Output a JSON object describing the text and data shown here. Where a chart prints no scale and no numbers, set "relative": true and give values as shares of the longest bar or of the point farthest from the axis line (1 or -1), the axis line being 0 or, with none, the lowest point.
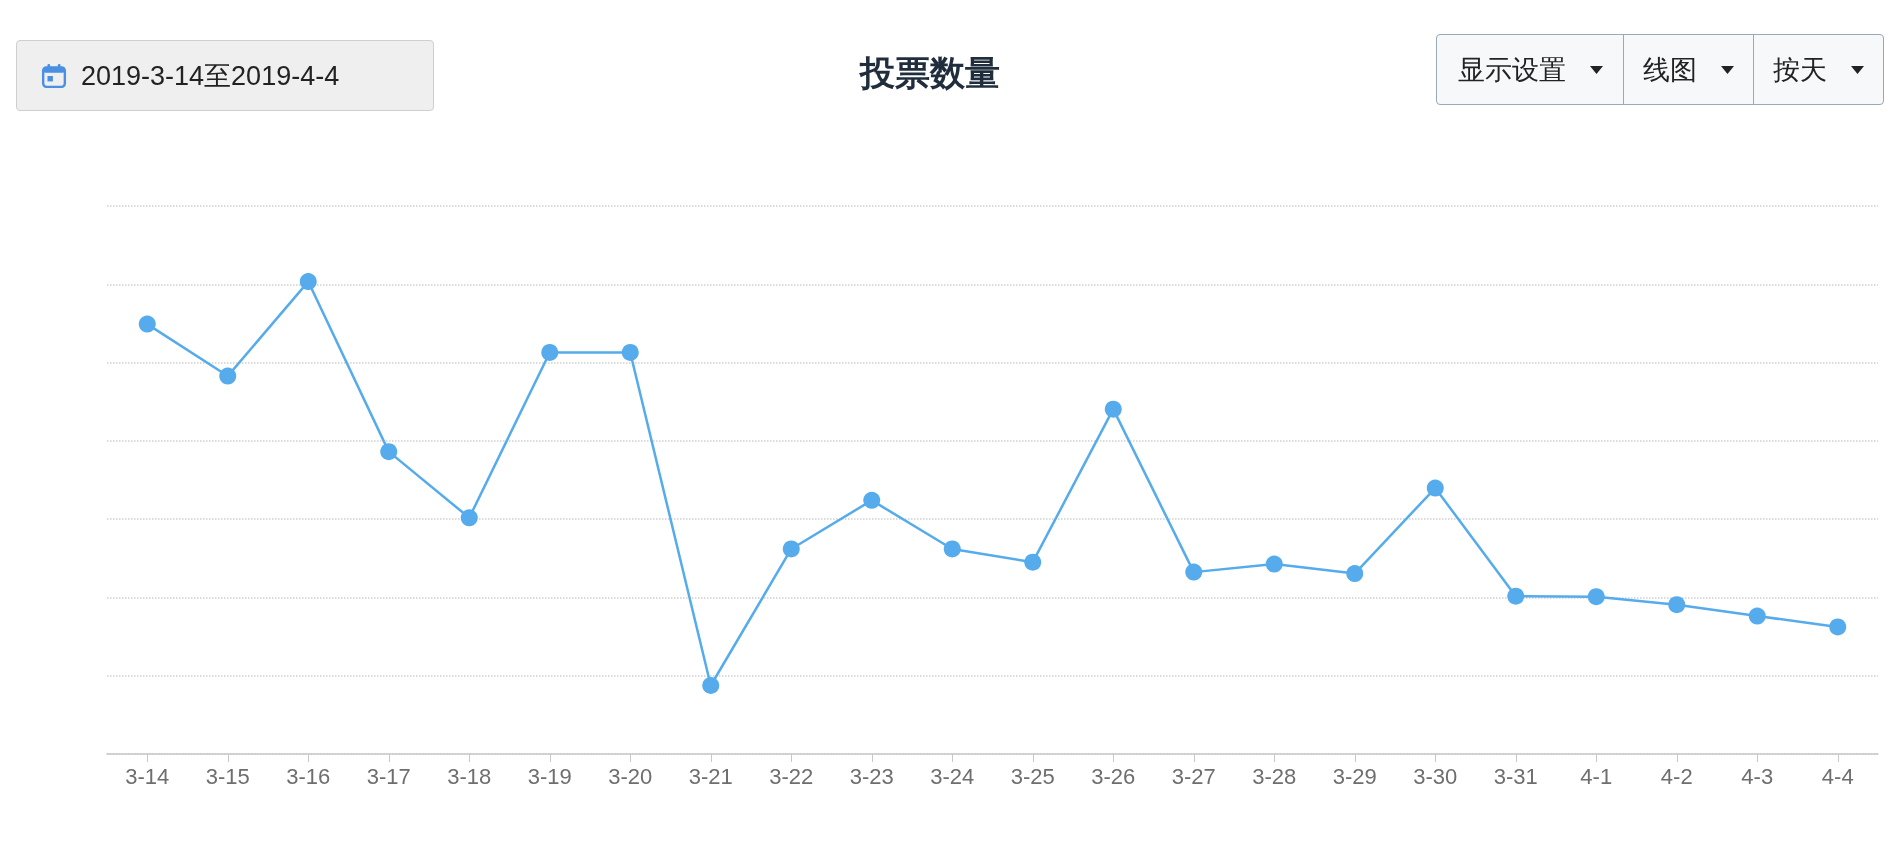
{
  "chart_data": {
    "type": "line",
    "title": "投票数量",
    "annotations": [
      "2019-3-14至2019-4-4",
      "显示设置",
      "线图",
      "按天"
    ],
    "categories": [
      "3-14",
      "3-15",
      "3-16",
      "3-17",
      "3-18",
      "3-19",
      "3-20",
      "3-21",
      "3-22",
      "3-23",
      "3-24",
      "3-25",
      "3-26",
      "3-27",
      "3-28",
      "3-29",
      "3-30",
      "3-31",
      "4-1",
      "4-2",
      "4-3",
      "4-4"
    ],
    "series": [
      {
        "color": "#55abeb",
        "values": [
          0.91,
          0.8,
          1,
          0.64,
          0.5,
          0.85,
          0.85,
          0.145,
          0.434,
          0.537,
          0.434,
          0.406,
          0.73,
          0.385,
          0.402,
          0.382,
          0.563,
          0.334,
          0.333,
          0.316,
          0.292,
          0.269
        ]
      }
    ],
    "relative": true,
    "grid": "y",
    "marker": "circle",
    "line_style": "solid"
  }
}
